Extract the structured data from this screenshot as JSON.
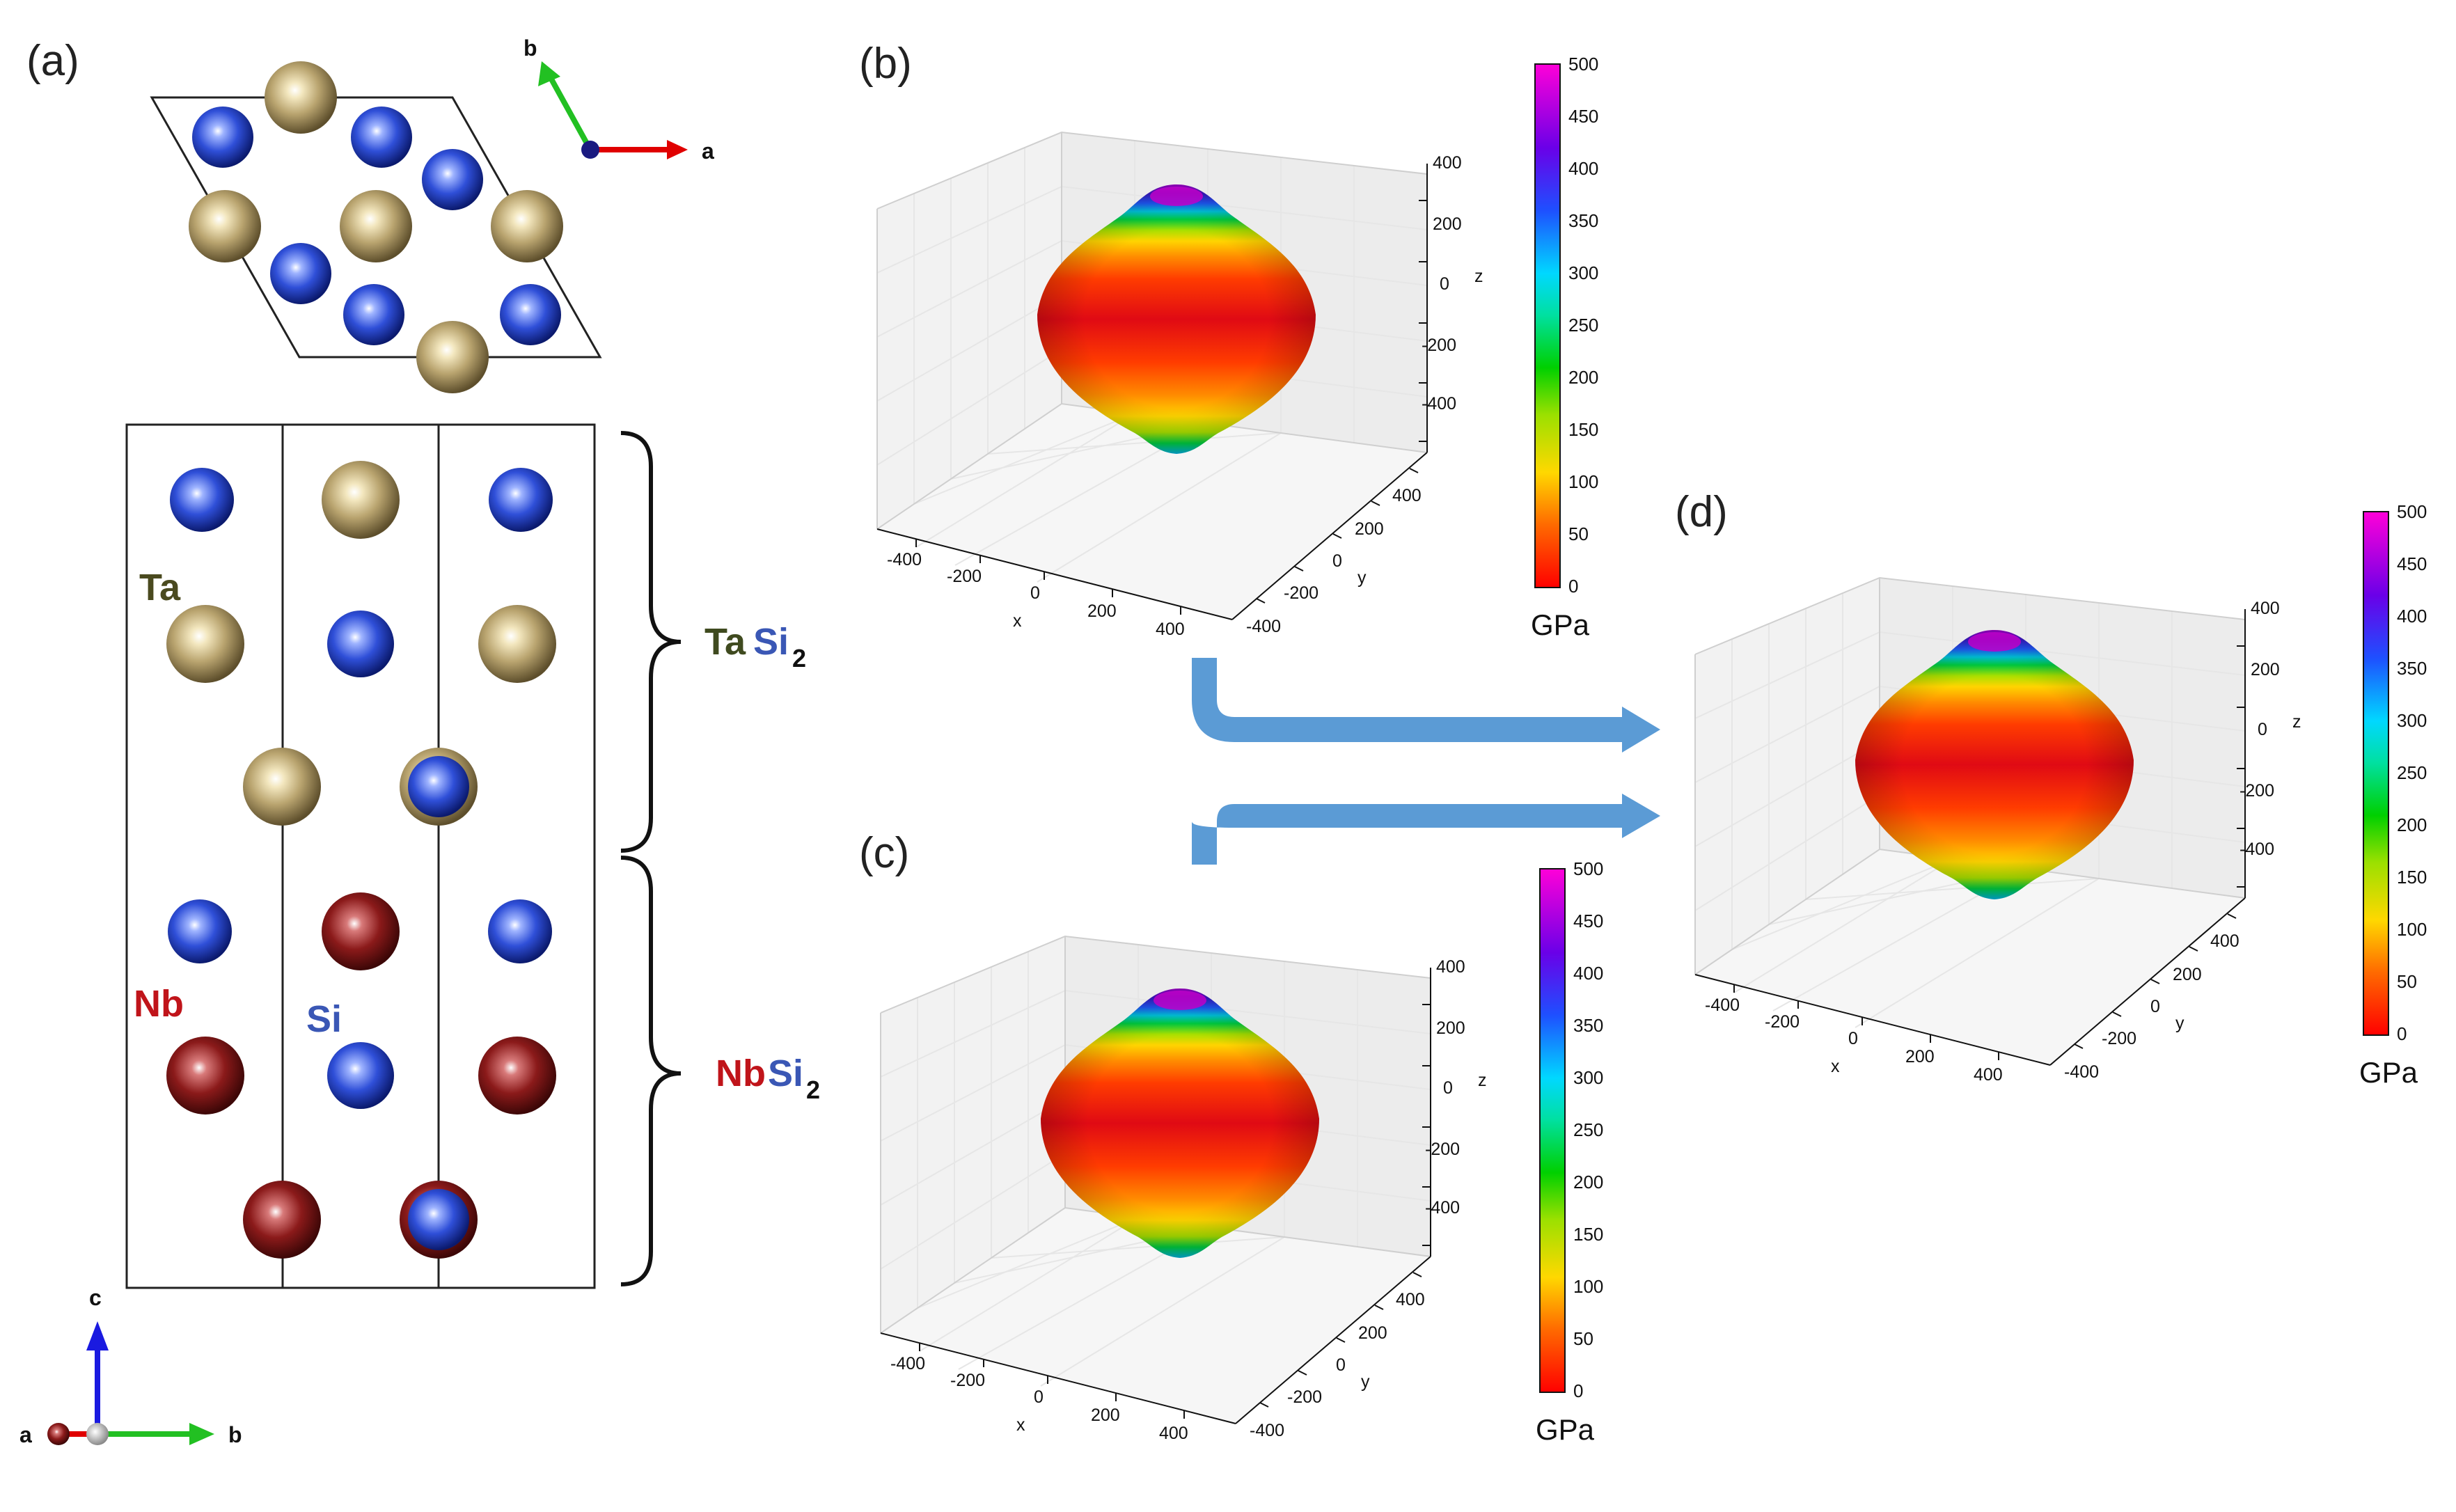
{
  "panel_labels": {
    "a": "(a)",
    "b": "(b)",
    "c": "(c)",
    "d": "(d)"
  },
  "axes_top": {
    "a": "a",
    "b": "b"
  },
  "axes_bottom": {
    "a": "a",
    "b": "b",
    "c": "c"
  },
  "element_labels": {
    "ta": "Ta",
    "nb": "Nb",
    "si": "Si"
  },
  "compounds": {
    "tasi2": {
      "metal": "Ta",
      "si": "Si",
      "sub": "2"
    },
    "nbsi2": {
      "metal": "Nb",
      "si": "Si",
      "sub": "2"
    }
  },
  "plot_axes": {
    "x_label": "x",
    "y_label": "y",
    "z_label": "z",
    "x_ticks": [
      "-400",
      "-200",
      "0",
      "200",
      "400"
    ],
    "y_ticks": [
      "-400",
      "-200",
      "0",
      "200",
      "400"
    ],
    "z_ticks": [
      "400",
      "200",
      "0",
      "-200",
      "-400"
    ]
  },
  "colorbar": {
    "ticks": [
      "500",
      "450",
      "400",
      "350",
      "300",
      "250",
      "200",
      "150",
      "100",
      "50",
      "0"
    ],
    "unit": "GPa"
  },
  "colors": {
    "ta": "#b9a46f",
    "si": "#2f4fd8",
    "nb": "#8b1a1a",
    "ta_text": "#3f4a1f",
    "nb_text": "#c0141a",
    "si_text": "#3a57b5",
    "arrow": "#5b9bd5"
  }
}
